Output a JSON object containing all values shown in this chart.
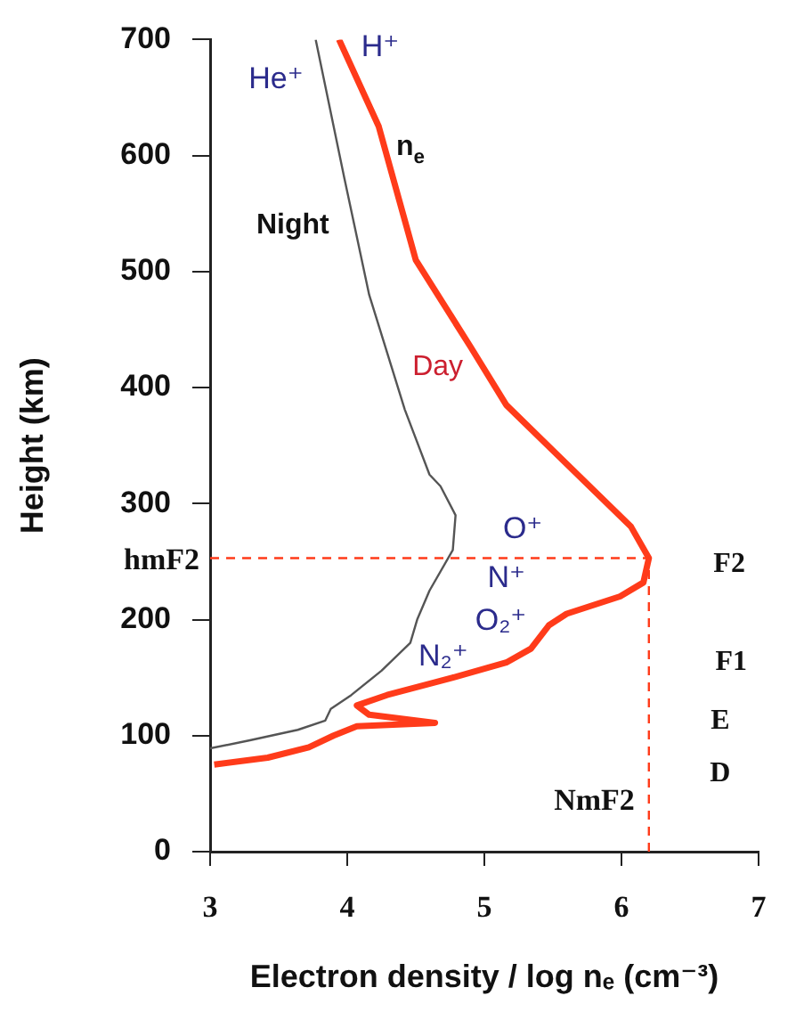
{
  "chart_data": {
    "type": "line",
    "xlabel": "Electron density / log nₑ (cm⁻³)",
    "ylabel": "Height (km)",
    "xlim": [
      3,
      7
    ],
    "xticks": [
      3,
      4,
      5,
      6,
      7
    ],
    "ylim": [
      0,
      700
    ],
    "yticks": [
      0,
      100,
      200,
      300,
      400,
      500,
      600,
      700
    ],
    "grid": false,
    "legend": false,
    "marker": "none",
    "series": [
      {
        "name": "Day",
        "color": "#ff3b1a",
        "x": [
          3.94,
          4.23,
          4.5,
          4.9,
          5.16,
          5.81,
          6.07,
          6.2,
          6.16,
          5.99,
          5.6,
          5.47,
          5.34,
          5.16,
          4.77,
          4.29,
          4.07,
          4.16,
          4.64,
          4.07,
          3.9,
          3.72,
          3.42,
          3.03
        ],
        "values": [
          700,
          625,
          510,
          435,
          385,
          310,
          280,
          253,
          232,
          220,
          205,
          195,
          175,
          163,
          150,
          135,
          126,
          118,
          111,
          108,
          100,
          90,
          81,
          75
        ]
      },
      {
        "name": "Night",
        "color": "#555555",
        "x": [
          3.77,
          3.98,
          4.16,
          4.42,
          4.6,
          4.68,
          4.79,
          4.77,
          4.6,
          4.51,
          4.46,
          4.25,
          4.03,
          3.88,
          3.84,
          3.64,
          3.29,
          3.0
        ],
        "values": [
          700,
          580,
          480,
          381,
          325,
          315,
          290,
          260,
          225,
          200,
          180,
          156,
          135,
          123,
          113,
          105,
          96,
          89
        ]
      }
    ],
    "ref_lines": [
      {
        "axis": "y",
        "value": 253,
        "label": "hmF2",
        "color": "#ff3b1a",
        "line_style": "dashed"
      },
      {
        "axis": "x",
        "value": 6.2,
        "label": "NmF2",
        "color": "#ff3b1a",
        "line_style": "dashed"
      }
    ],
    "annotations": [
      "He⁺",
      "H⁺",
      "n$_{e}$",
      "O⁺",
      "N⁺",
      "O₂⁺",
      "N₂⁺",
      "F2",
      "F1",
      "E",
      "D"
    ]
  }
}
